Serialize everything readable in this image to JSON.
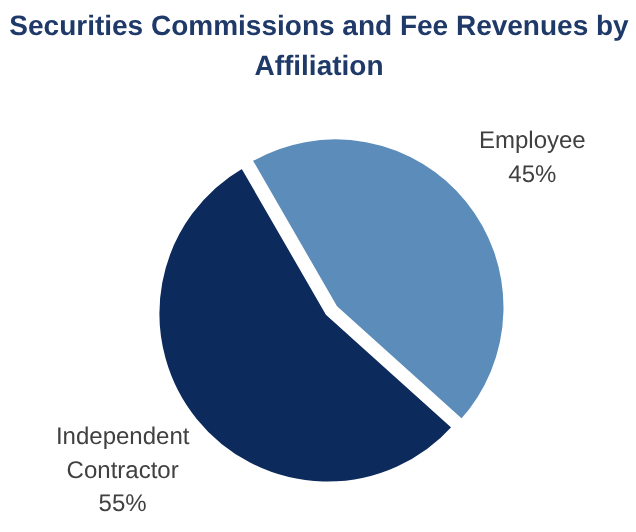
{
  "chart_data": {
    "type": "pie",
    "title": "Securities Commissions and Fee Revenues by\nAffiliation",
    "categories": [
      "Employee",
      "Independent\nContractor"
    ],
    "values": [
      45,
      55
    ],
    "value_labels": [
      "45%",
      "55%"
    ],
    "colors": [
      "#5b8cba",
      "#0c2a5b"
    ]
  }
}
